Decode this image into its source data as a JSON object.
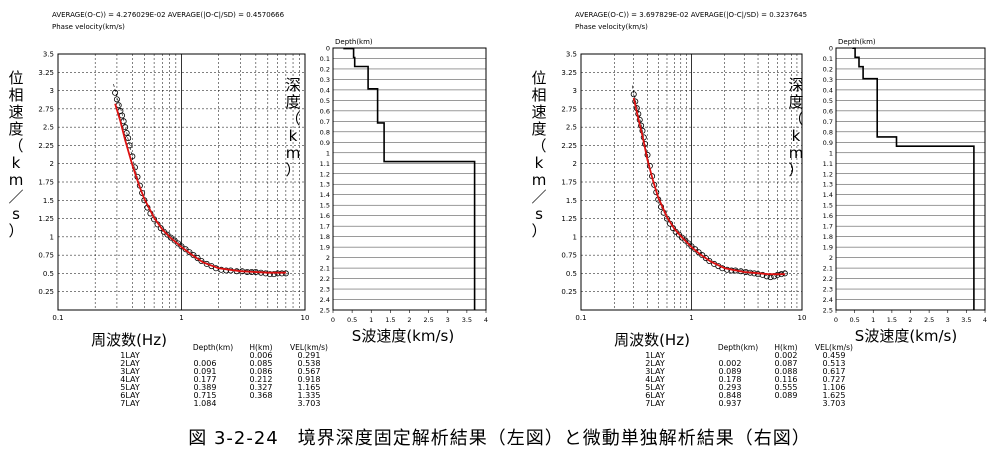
{
  "caption": "図 3-2-24　境界深度固定解析結果（左図）と微動単独解析結果（右図）",
  "colors": {
    "model": "#dd1111",
    "observed": "#000000",
    "grid": "#000000"
  },
  "panels": [
    {
      "average_header": "AVERAGE(O-C)) = 4.276029E-02      AVERAGE(|O-C|/SD) = 0.4570666",
      "dispersion_title": "Phase velocity(km/s)",
      "ylabel_jp": "位相速度（km／s）",
      "xlabel_jp": "周波数(Hz)",
      "profile_title": "Depth(km)",
      "profile_label_jp": "深度（km）",
      "profile_xlabel_jp": "S波速度(km/s)",
      "table_headers": [
        "",
        "Depth(km)",
        "H(km)",
        "VEL(km/s)"
      ],
      "table_rows": [
        [
          "1LAY",
          "",
          "0.006",
          "0.291"
        ],
        [
          "2LAY",
          "0.006",
          "0.085",
          "0.538"
        ],
        [
          "3LAY",
          "0.091",
          "0.086",
          "0.567"
        ],
        [
          "4LAY",
          "0.177",
          "0.212",
          "0.918"
        ],
        [
          "5LAY",
          "0.389",
          "0.327",
          "1.165"
        ],
        [
          "6LAY",
          "0.715",
          "0.368",
          "1.335"
        ],
        [
          "7LAY",
          "1.084",
          "",
          "3.703"
        ]
      ]
    },
    {
      "average_header": "AVERAGE(O-C)) = 3.697829E-02      AVERAGE(|O-C|/SD) = 0.3237645",
      "dispersion_title": "Phase velocity(km/s)",
      "ylabel_jp": "位相速度（km／s）",
      "xlabel_jp": "周波数(Hz)",
      "profile_title": "Depth(km)",
      "profile_label_jp": "深度（km）",
      "profile_xlabel_jp": "S波速度(km/s)",
      "table_headers": [
        "",
        "Depth(km)",
        "H(km)",
        "VEL(km/s)"
      ],
      "table_rows": [
        [
          "1LAY",
          "",
          "0.002",
          "0.459"
        ],
        [
          "2LAY",
          "0.002",
          "0.087",
          "0.513"
        ],
        [
          "3LAY",
          "0.089",
          "0.088",
          "0.617"
        ],
        [
          "4LAY",
          "0.178",
          "0.116",
          "0.727"
        ],
        [
          "5LAY",
          "0.293",
          "0.555",
          "1.106"
        ],
        [
          "6LAY",
          "0.848",
          "0.089",
          "1.625"
        ],
        [
          "7LAY",
          "0.937",
          "",
          "3.703"
        ]
      ]
    }
  ],
  "chart_data": [
    {
      "type": "scatter",
      "panel": "left-dispersion",
      "xscale": "log",
      "xlim": [
        0.1,
        10
      ],
      "ylim": [
        0,
        3.5
      ],
      "xticks": [
        "0.1",
        "1",
        "10"
      ],
      "yticks": [
        "0.25",
        "0.5",
        "0.75",
        "1",
        "1.25",
        "1.5",
        "1.75",
        "2",
        "2.25",
        "2.5",
        "2.75",
        "3",
        "3.25",
        "3.5"
      ],
      "grid": true,
      "series": [
        {
          "x": [
            0.29,
            0.3,
            0.31,
            0.32,
            0.33,
            0.34,
            0.35,
            0.36,
            0.37,
            0.38,
            0.4,
            0.42,
            0.44,
            0.46,
            0.48,
            0.5,
            0.53,
            0.56,
            0.6,
            0.64,
            0.68,
            0.72,
            0.77,
            0.82,
            0.88,
            0.94,
            1.0,
            1.08,
            1.16,
            1.25,
            1.35,
            1.45,
            1.6,
            1.75,
            1.9,
            2.1,
            2.3,
            2.5,
            2.8,
            3.1,
            3.4,
            3.7,
            4.0,
            4.4,
            4.8,
            5.2,
            5.6,
            6.0,
            6.5,
            7.0
          ],
          "y": [
            2.97,
            2.88,
            2.8,
            2.72,
            2.66,
            2.58,
            2.5,
            2.42,
            2.35,
            2.25,
            2.1,
            1.95,
            1.82,
            1.7,
            1.6,
            1.5,
            1.4,
            1.32,
            1.24,
            1.17,
            1.12,
            1.07,
            1.03,
            0.99,
            0.95,
            0.91,
            0.87,
            0.83,
            0.79,
            0.75,
            0.71,
            0.67,
            0.63,
            0.6,
            0.57,
            0.55,
            0.54,
            0.54,
            0.53,
            0.53,
            0.52,
            0.52,
            0.52,
            0.51,
            0.5,
            0.49,
            0.49,
            0.5,
            0.5,
            0.5
          ]
        }
      ]
    },
    {
      "type": "line",
      "panel": "left-dispersion-model",
      "series": [
        {
          "x": [
            0.29,
            0.32,
            0.35,
            0.4,
            0.45,
            0.5,
            0.6,
            0.7,
            0.8,
            1.0,
            1.2,
            1.5,
            2.0,
            3.0,
            5.0,
            7.0
          ],
          "y": [
            2.82,
            2.58,
            2.32,
            1.98,
            1.72,
            1.52,
            1.26,
            1.1,
            1.0,
            0.86,
            0.76,
            0.65,
            0.57,
            0.53,
            0.51,
            0.51
          ]
        }
      ]
    },
    {
      "type": "line",
      "panel": "left-profile",
      "xlim": [
        0,
        4
      ],
      "ylim": [
        0,
        2.5
      ],
      "xticks": [
        "0",
        "0.5",
        "1",
        "1.5",
        "2",
        "2.5",
        "3",
        "3.5",
        "4"
      ],
      "yticks": [
        "0",
        "0.1",
        "0.2",
        "0.3",
        "0.4",
        "0.5",
        "0.6",
        "0.7",
        "0.8",
        "0.9",
        "1",
        "1.1",
        "1.2",
        "1.3",
        "1.4",
        "1.5",
        "1.6",
        "1.7",
        "1.8",
        "1.9",
        "2",
        "2.1",
        "2.2",
        "2.3",
        "2.4",
        "2.5"
      ],
      "step_velocity": [
        0.291,
        0.538,
        0.567,
        0.918,
        1.165,
        1.335,
        3.703
      ],
      "step_depth_top": [
        0,
        0.006,
        0.091,
        0.177,
        0.389,
        0.715,
        1.084
      ]
    },
    {
      "type": "scatter",
      "panel": "right-dispersion",
      "xscale": "log",
      "xlim": [
        0.1,
        10
      ],
      "ylim": [
        0,
        3.5
      ],
      "xticks": [
        "0.1",
        "1",
        "10"
      ],
      "yticks": [
        "0.25",
        "0.5",
        "0.75",
        "1",
        "1.25",
        "1.5",
        "1.75",
        "2",
        "2.25",
        "2.5",
        "2.75",
        "3",
        "3.25",
        "3.5"
      ],
      "grid": true,
      "series": [
        {
          "x": [
            0.3,
            0.31,
            0.32,
            0.33,
            0.34,
            0.35,
            0.36,
            0.37,
            0.38,
            0.4,
            0.42,
            0.44,
            0.46,
            0.48,
            0.5,
            0.53,
            0.56,
            0.6,
            0.64,
            0.68,
            0.72,
            0.77,
            0.82,
            0.88,
            0.94,
            1.0,
            1.08,
            1.16,
            1.25,
            1.35,
            1.45,
            1.6,
            1.75,
            1.9,
            2.1,
            2.3,
            2.5,
            2.8,
            3.1,
            3.4,
            3.7,
            4.0,
            4.4,
            4.8,
            5.2,
            5.6,
            6.0,
            6.5,
            7.0
          ],
          "y": [
            2.95,
            2.85,
            2.76,
            2.68,
            2.6,
            2.52,
            2.45,
            2.36,
            2.27,
            2.12,
            1.97,
            1.83,
            1.71,
            1.61,
            1.51,
            1.41,
            1.33,
            1.25,
            1.18,
            1.12,
            1.07,
            1.03,
            0.99,
            0.95,
            0.91,
            0.87,
            0.83,
            0.79,
            0.75,
            0.71,
            0.67,
            0.63,
            0.6,
            0.57,
            0.55,
            0.54,
            0.54,
            0.53,
            0.52,
            0.51,
            0.5,
            0.49,
            0.48,
            0.46,
            0.45,
            0.46,
            0.48,
            0.49,
            0.5
          ]
        }
      ]
    },
    {
      "type": "line",
      "panel": "right-dispersion-model",
      "series": [
        {
          "x": [
            0.3,
            0.33,
            0.36,
            0.4,
            0.45,
            0.5,
            0.6,
            0.7,
            0.8,
            1.0,
            1.2,
            1.5,
            2.0,
            3.0,
            5.0,
            7.0
          ],
          "y": [
            2.9,
            2.62,
            2.38,
            2.05,
            1.76,
            1.54,
            1.27,
            1.11,
            1.01,
            0.86,
            0.76,
            0.66,
            0.57,
            0.52,
            0.49,
            0.49
          ]
        }
      ]
    },
    {
      "type": "line",
      "panel": "right-profile",
      "xlim": [
        0,
        4
      ],
      "ylim": [
        0,
        2.5
      ],
      "xticks": [
        "0",
        "0.5",
        "1",
        "1.5",
        "2",
        "2.5",
        "3",
        "3.5",
        "4"
      ],
      "yticks": [
        "0",
        "0.1",
        "0.2",
        "0.3",
        "0.4",
        "0.5",
        "0.6",
        "0.7",
        "0.8",
        "0.9",
        "1",
        "1.1",
        "1.2",
        "1.3",
        "1.4",
        "1.5",
        "1.6",
        "1.7",
        "1.8",
        "1.9",
        "2",
        "2.1",
        "2.2",
        "2.3",
        "2.4",
        "2.5"
      ],
      "step_velocity": [
        0.459,
        0.513,
        0.617,
        0.727,
        1.106,
        1.625,
        3.703
      ],
      "step_depth_top": [
        0,
        0.002,
        0.089,
        0.178,
        0.293,
        0.848,
        0.937
      ]
    }
  ]
}
